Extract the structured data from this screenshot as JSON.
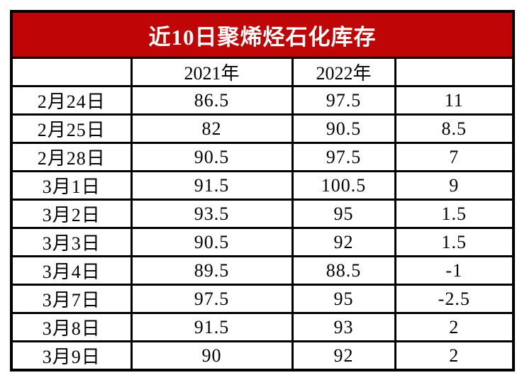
{
  "title": "近10日聚烯烃石化库存",
  "colors": {
    "title_bg": "#C00506",
    "title_text": "#FFFFFF",
    "border": "#000000",
    "cell_bg": "#FFFFFF",
    "cell_text": "#000000"
  },
  "chart_data": {
    "type": "table",
    "title": "近10日聚烯烃石化库存",
    "columns": [
      "",
      "2021年",
      "2022年",
      ""
    ],
    "rows": [
      [
        "2月24日",
        "86.5",
        "97.5",
        "11"
      ],
      [
        "2月25日",
        "82",
        "90.5",
        "8.5"
      ],
      [
        "2月28日",
        "90.5",
        "97.5",
        "7"
      ],
      [
        "3月1日",
        "91.5",
        "100.5",
        "9"
      ],
      [
        "3月2日",
        "93.5",
        "95",
        "1.5"
      ],
      [
        "3月3日",
        "90.5",
        "92",
        "1.5"
      ],
      [
        "3月4日",
        "89.5",
        "88.5",
        "-1"
      ],
      [
        "3月7日",
        "97.5",
        "95",
        "-2.5"
      ],
      [
        "3月8日",
        "91.5",
        "93",
        "2"
      ],
      [
        "3月9日",
        "90",
        "92",
        "2"
      ]
    ]
  }
}
